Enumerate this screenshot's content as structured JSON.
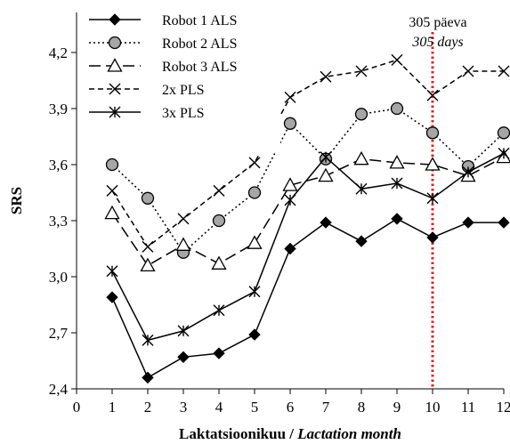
{
  "chart_data": {
    "type": "line",
    "title": "",
    "xlabel": "Laktatsioonikuu / ",
    "xlabel_italic": "Lactation month",
    "ylabel": "SRS",
    "xlim": [
      0,
      12
    ],
    "ylim": [
      2.4,
      4.3
    ],
    "x_ticks": [
      "0",
      "1",
      "2",
      "3",
      "4",
      "5",
      "6",
      "7",
      "8",
      "9",
      "10",
      "11",
      "12"
    ],
    "y_ticks": [
      "2,4",
      "2,7",
      "3,0",
      "3,3",
      "3,6",
      "3,9",
      "4,2"
    ],
    "y_tick_values": [
      2.4,
      2.7,
      3.0,
      3.3,
      3.6,
      3.9,
      4.2
    ],
    "x": [
      1,
      2,
      3,
      4,
      5,
      6,
      7,
      8,
      9,
      10,
      11,
      12
    ],
    "grid": false,
    "legend_position": "top-left",
    "series": [
      {
        "name": "Robot 1 ALS",
        "marker": "diamond-filled",
        "dash": "solid",
        "color": "#000000",
        "values": [
          2.89,
          2.46,
          2.57,
          2.59,
          2.69,
          3.15,
          3.29,
          3.19,
          3.31,
          3.21,
          3.29,
          3.29
        ]
      },
      {
        "name": "Robot 2 ALS",
        "marker": "circle-gray",
        "dash": "dotted",
        "color": "#000000",
        "values": [
          3.6,
          3.42,
          3.13,
          3.3,
          3.45,
          3.82,
          3.63,
          3.87,
          3.9,
          3.77,
          3.59,
          3.77
        ]
      },
      {
        "name": "Robot 3 ALS",
        "marker": "triangle-open",
        "dash": "long-dash",
        "color": "#000000",
        "values": [
          3.34,
          3.06,
          3.17,
          3.07,
          3.18,
          3.49,
          3.54,
          3.63,
          3.61,
          3.6,
          3.54,
          3.64
        ]
      },
      {
        "name": "2x PLS",
        "marker": "x",
        "dash": "short-dash",
        "color": "#000000",
        "values": [
          3.46,
          3.16,
          3.31,
          3.46,
          3.61,
          3.96,
          4.07,
          4.1,
          4.16,
          3.97,
          4.1,
          4.1
        ]
      },
      {
        "name": "3x PLS",
        "marker": "asterisk",
        "dash": "solid",
        "color": "#000000",
        "values": [
          3.03,
          2.66,
          2.71,
          2.82,
          2.92,
          3.41,
          3.64,
          3.47,
          3.5,
          3.42,
          3.56,
          3.66
        ]
      }
    ],
    "annotation": {
      "x": 10,
      "line_color": "#e02020",
      "text": "305 päeva",
      "text_italic": "305 days"
    }
  }
}
